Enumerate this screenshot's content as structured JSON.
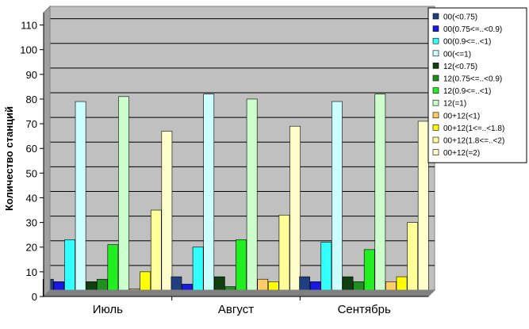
{
  "chart_data": {
    "type": "bar",
    "ylabel": "Количество станций",
    "xlabel": "",
    "ylim": [
      0,
      115
    ],
    "yticks": [
      0,
      10,
      20,
      30,
      40,
      50,
      60,
      70,
      80,
      90,
      100,
      110
    ],
    "grid": true,
    "plot_background": "#c0c0c0",
    "legend_position": "top-right",
    "categories": [
      "Июль",
      "Август",
      "Сентябрь"
    ],
    "series": [
      {
        "name": "00(<0.75)",
        "color": "#1f3f7f",
        "values": [
          7,
          8,
          8
        ]
      },
      {
        "name": "00(0.75<=..<0.9)",
        "color": "#1a1adf",
        "values": [
          6,
          5,
          6
        ]
      },
      {
        "name": "00(0.9<=..<1)",
        "color": "#33ffff",
        "values": [
          23,
          20,
          22
        ]
      },
      {
        "name": "00(<=1)",
        "color": "#ccffff",
        "values": [
          79,
          82,
          79
        ]
      },
      {
        "name": "12(<0.75)",
        "color": "#104010",
        "values": [
          6,
          8,
          8
        ]
      },
      {
        "name": "12(0.75<=..<0.9)",
        "color": "#1f8f1f",
        "values": [
          7,
          4,
          6
        ]
      },
      {
        "name": "12(0.9<=..<1)",
        "color": "#22ee22",
        "values": [
          21,
          23,
          19
        ]
      },
      {
        "name": "12(=1)",
        "color": "#ccffcc",
        "values": [
          81,
          80,
          82
        ]
      },
      {
        "name": "00+12(<1)",
        "color": "#ffcc66",
        "values": [
          3,
          7,
          6
        ]
      },
      {
        "name": "00+12(1<=..<1.8)",
        "color": "#ffff00",
        "values": [
          10,
          6,
          8
        ]
      },
      {
        "name": "00+12(1.8<=..<2)",
        "color": "#ffff99",
        "values": [
          35,
          33,
          30
        ]
      },
      {
        "name": "00+12(=2)",
        "color": "#ffffcc",
        "values": [
          67,
          69,
          71
        ]
      }
    ]
  }
}
